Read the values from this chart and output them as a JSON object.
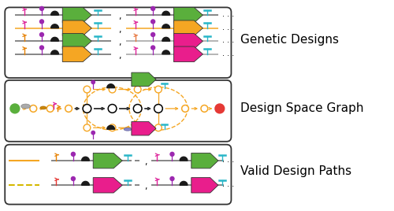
{
  "bg_color": "#ffffff",
  "label1": "Genetic Designs",
  "label2": "Design Space Graph",
  "label3": "Valid Design Paths",
  "label_fontsize": 11,
  "orange": "#F5A623",
  "green": "#5aaf3c",
  "magenta": "#e91e8c",
  "black": "#1a1a1a",
  "cyan": "#29b6c8",
  "red": "#e53935",
  "purple": "#9c27b0",
  "pink_promo": "#e91e8c",
  "orange_promo": "#e68000",
  "gray_line": "#888888",
  "dark_gray": "#444444"
}
